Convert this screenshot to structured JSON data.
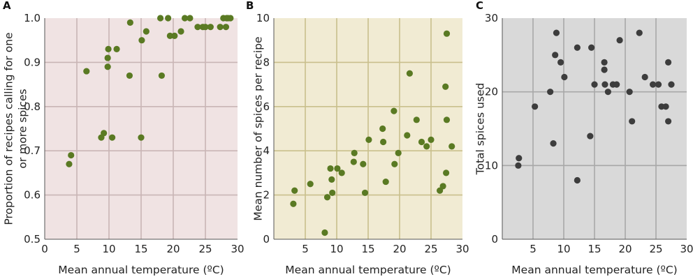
{
  "chart_data": [
    {
      "panel": "A",
      "type": "scatter",
      "xlabel": "Mean annual temperature (ºC)",
      "ylabel": [
        "Proportion of recipes calling for one",
        "or more spices"
      ],
      "xlim": [
        0,
        30
      ],
      "ylim": [
        0.5,
        1.0
      ],
      "xticks": [
        "0",
        "5",
        "10",
        "15",
        "20",
        "25",
        "30"
      ],
      "yticks": [
        "0.5",
        "0.6",
        "0.7",
        "0.8",
        "0.9",
        "1.0"
      ],
      "grid": true,
      "background": "#f0e3e3",
      "point_color": "#5a7a23",
      "x": [
        3.8,
        4.1,
        6.5,
        8.8,
        9.2,
        9.8,
        9.8,
        9.9,
        10.5,
        11.2,
        13.2,
        13.3,
        15.0,
        15.1,
        15.8,
        18.0,
        18.2,
        19.2,
        19.5,
        20.2,
        21.2,
        21.8,
        22.6,
        23.8,
        24.6,
        25.0,
        25.8,
        27.3,
        27.8,
        28.2,
        28.3,
        28.5,
        28.9
      ],
      "y": [
        0.67,
        0.69,
        0.88,
        0.73,
        0.74,
        0.89,
        0.91,
        0.93,
        0.73,
        0.93,
        0.87,
        0.99,
        0.73,
        0.95,
        0.97,
        1.0,
        0.87,
        1.0,
        0.96,
        0.96,
        0.97,
        1.0,
        1.0,
        0.98,
        0.98,
        0.98,
        0.98,
        0.98,
        1.0,
        0.98,
        1.0,
        1.0,
        1.0
      ]
    },
    {
      "panel": "B",
      "type": "scatter",
      "xlabel": "Mean annual temperature (ºC)",
      "ylabel": [
        "Mean number of spices per recipe"
      ],
      "xlim": [
        0,
        30
      ],
      "ylim": [
        0,
        10
      ],
      "xticks": [
        "5",
        "10",
        "15",
        "20",
        "25",
        "30"
      ],
      "yticks": [
        "0",
        "2",
        "4",
        "6",
        "8",
        "10"
      ],
      "grid": true,
      "background": "#f1ebd3",
      "point_color": "#5a7a23",
      "x": [
        3.1,
        3.3,
        5.8,
        8.1,
        8.5,
        9.0,
        9.2,
        9.3,
        10.1,
        10.8,
        12.7,
        12.8,
        14.2,
        14.5,
        15.1,
        17.3,
        17.4,
        17.8,
        19.1,
        19.2,
        19.8,
        21.2,
        21.6,
        22.7,
        23.5,
        24.3,
        25.0,
        26.4,
        26.9,
        27.3,
        27.4,
        27.5,
        27.5,
        28.3
      ],
      "y": [
        1.6,
        2.2,
        2.5,
        0.3,
        1.9,
        3.2,
        2.7,
        2.1,
        3.2,
        3.0,
        3.5,
        3.9,
        3.4,
        2.1,
        4.5,
        5.0,
        4.4,
        2.6,
        5.8,
        3.4,
        3.9,
        4.7,
        7.5,
        5.4,
        4.4,
        4.2,
        4.5,
        2.2,
        2.4,
        6.9,
        3.0,
        5.4,
        9.3,
        4.2
      ]
    },
    {
      "panel": "C",
      "type": "scatter",
      "xlabel": "Mean annual temperature (ºC)",
      "ylabel": [
        "Total spices used"
      ],
      "xlim": [
        0,
        30
      ],
      "ylim": [
        0,
        30
      ],
      "xticks": [
        "5",
        "10",
        "15",
        "20",
        "25",
        "30"
      ],
      "yticks": [
        "0",
        "10",
        "20",
        "30"
      ],
      "grid": true,
      "background": "#d9d9d9",
      "point_color": "#3d3d3d",
      "x": [
        2.6,
        2.7,
        5.3,
        7.8,
        8.3,
        8.6,
        8.8,
        9.5,
        10.1,
        12.2,
        12.2,
        14.3,
        14.5,
        15.0,
        16.6,
        16.6,
        16.7,
        17.2,
        18.0,
        18.6,
        19.1,
        20.7,
        21.1,
        22.3,
        23.2,
        24.5,
        25.4,
        25.9,
        26.6,
        27.0,
        27.0,
        27.5
      ],
      "y": [
        10,
        11,
        18,
        20,
        13,
        25,
        28,
        24,
        22,
        8,
        26,
        14,
        26,
        21,
        24,
        23,
        21,
        20,
        21,
        21,
        27,
        20,
        16,
        28,
        22,
        21,
        21,
        18,
        18,
        16,
        24,
        21
      ]
    }
  ]
}
